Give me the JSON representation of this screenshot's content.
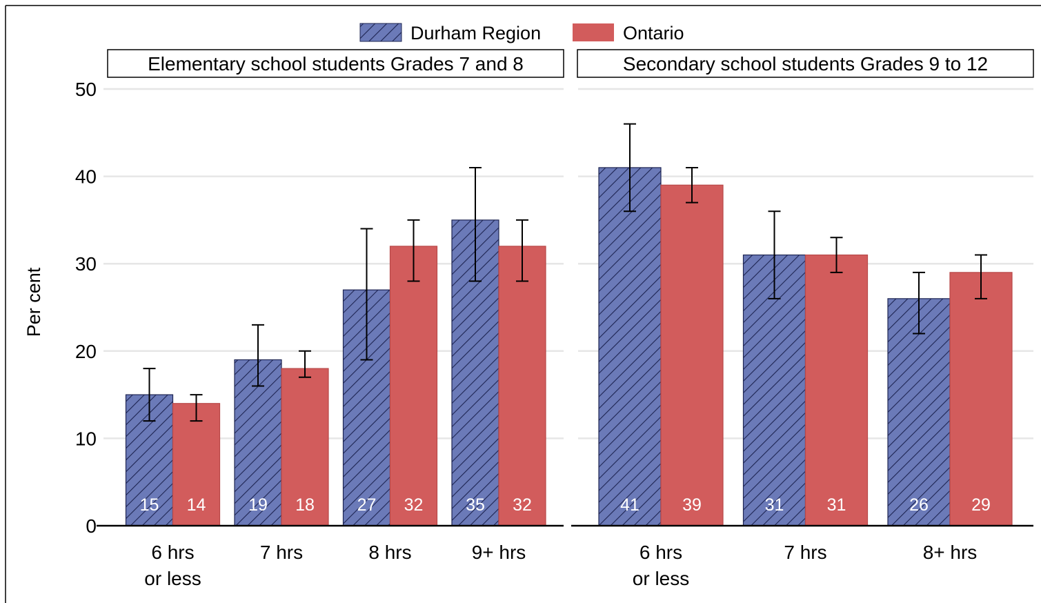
{
  "legend": {
    "position": "top-center",
    "items": [
      {
        "label": "Durham Region",
        "color": "#6b7ab8",
        "pattern": "hatched"
      },
      {
        "label": "Ontario",
        "color": "#d25c5c",
        "pattern": "solid"
      }
    ]
  },
  "chart_data": [
    {
      "type": "bar",
      "panel_title": "Elementary school students Grades 7 and 8",
      "ylabel": "Per cent",
      "ylim": [
        0,
        50
      ],
      "yticks": [
        0,
        10,
        20,
        30,
        40,
        50
      ],
      "grid": true,
      "categories": [
        [
          "6 hrs",
          "or less"
        ],
        [
          "7 hrs"
        ],
        [
          "8 hrs"
        ],
        [
          "9+ hrs"
        ]
      ],
      "series": [
        {
          "name": "Durham Region",
          "values": [
            15,
            19,
            27,
            35
          ],
          "ci_low": [
            12,
            16,
            19,
            28
          ],
          "ci_high": [
            18,
            23,
            34,
            41
          ]
        },
        {
          "name": "Ontario",
          "values": [
            14,
            18,
            32,
            32
          ],
          "ci_low": [
            12,
            17,
            28,
            28
          ],
          "ci_high": [
            15,
            20,
            35,
            35
          ]
        }
      ]
    },
    {
      "type": "bar",
      "panel_title": "Secondary school students Grades 9 to 12",
      "ylabel": "Per cent",
      "ylim": [
        0,
        50
      ],
      "yticks": [
        0,
        10,
        20,
        30,
        40,
        50
      ],
      "grid": true,
      "categories": [
        [
          "6 hrs",
          "or less"
        ],
        [
          "7 hrs"
        ],
        [
          "8+ hrs"
        ]
      ],
      "series": [
        {
          "name": "Durham Region",
          "values": [
            41,
            31,
            26
          ],
          "ci_low": [
            36,
            26,
            22
          ],
          "ci_high": [
            46,
            36,
            29
          ]
        },
        {
          "name": "Ontario",
          "values": [
            39,
            31,
            29
          ],
          "ci_low": [
            37,
            29,
            26
          ],
          "ci_high": [
            41,
            33,
            31
          ]
        }
      ]
    }
  ]
}
